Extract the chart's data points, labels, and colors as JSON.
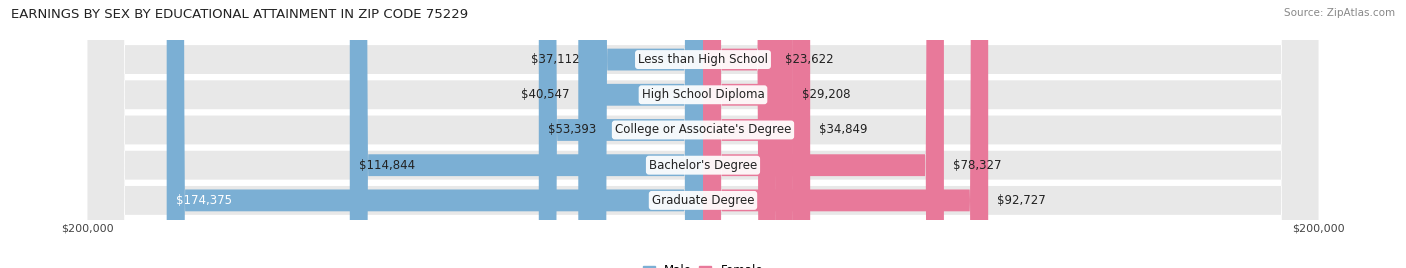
{
  "title": "EARNINGS BY SEX BY EDUCATIONAL ATTAINMENT IN ZIP CODE 75229",
  "source": "Source: ZipAtlas.com",
  "categories": [
    "Less than High School",
    "High School Diploma",
    "College or Associate's Degree",
    "Bachelor's Degree",
    "Graduate Degree"
  ],
  "male_values": [
    37112,
    40547,
    53393,
    114844,
    174375
  ],
  "female_values": [
    23622,
    29208,
    34849,
    78327,
    92727
  ],
  "male_labels": [
    "$37,112",
    "$40,547",
    "$53,393",
    "$114,844",
    "$174,375"
  ],
  "female_labels": [
    "$23,622",
    "$29,208",
    "$34,849",
    "$78,327",
    "$92,727"
  ],
  "male_color": "#7bafd4",
  "female_color": "#e8799a",
  "row_bg_color": "#e8e8e8",
  "max_value": 200000,
  "background_color": "#ffffff",
  "title_fontsize": 9.5,
  "label_fontsize": 8.5,
  "source_fontsize": 7.5,
  "tick_fontsize": 8
}
